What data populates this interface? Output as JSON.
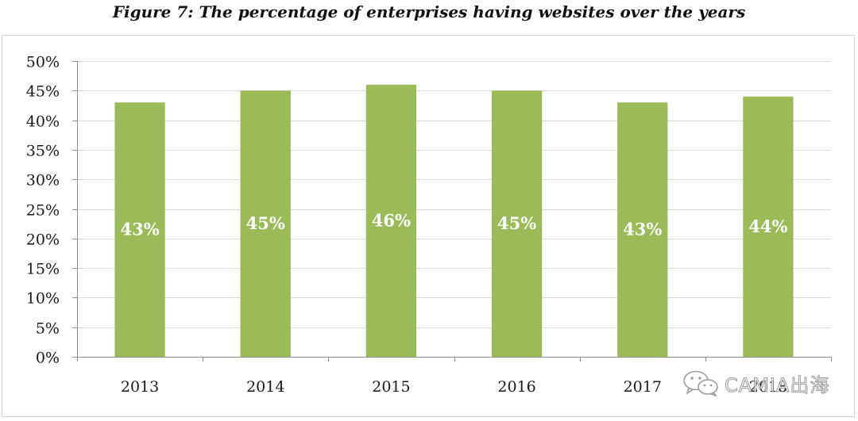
{
  "figure": {
    "title": "Figure 7: The percentage of enterprises having websites over the years"
  },
  "chart_data": {
    "type": "bar",
    "title": "Figure 7: The percentage of enterprises having websites over the years",
    "xlabel": "",
    "ylabel": "",
    "categories": [
      "2013",
      "2014",
      "2015",
      "2016",
      "2017",
      "2018"
    ],
    "values": [
      43,
      45,
      46,
      45,
      43,
      44
    ],
    "data_labels": [
      "43%",
      "45%",
      "46%",
      "45%",
      "43%",
      "44%"
    ],
    "ylim": [
      0,
      50
    ],
    "yticks": [
      "0%",
      "5%",
      "10%",
      "15%",
      "20%",
      "25%",
      "30%",
      "35%",
      "40%",
      "45%",
      "50%"
    ],
    "grid": true,
    "legend": "none",
    "colors": {
      "bar": "#9bbb59",
      "grid": "#d9d9d9",
      "axis": "#8c8c8c",
      "label": "#ffffff"
    }
  },
  "watermark": {
    "icon": "wechat-icon",
    "text": "CAMIA出海"
  }
}
